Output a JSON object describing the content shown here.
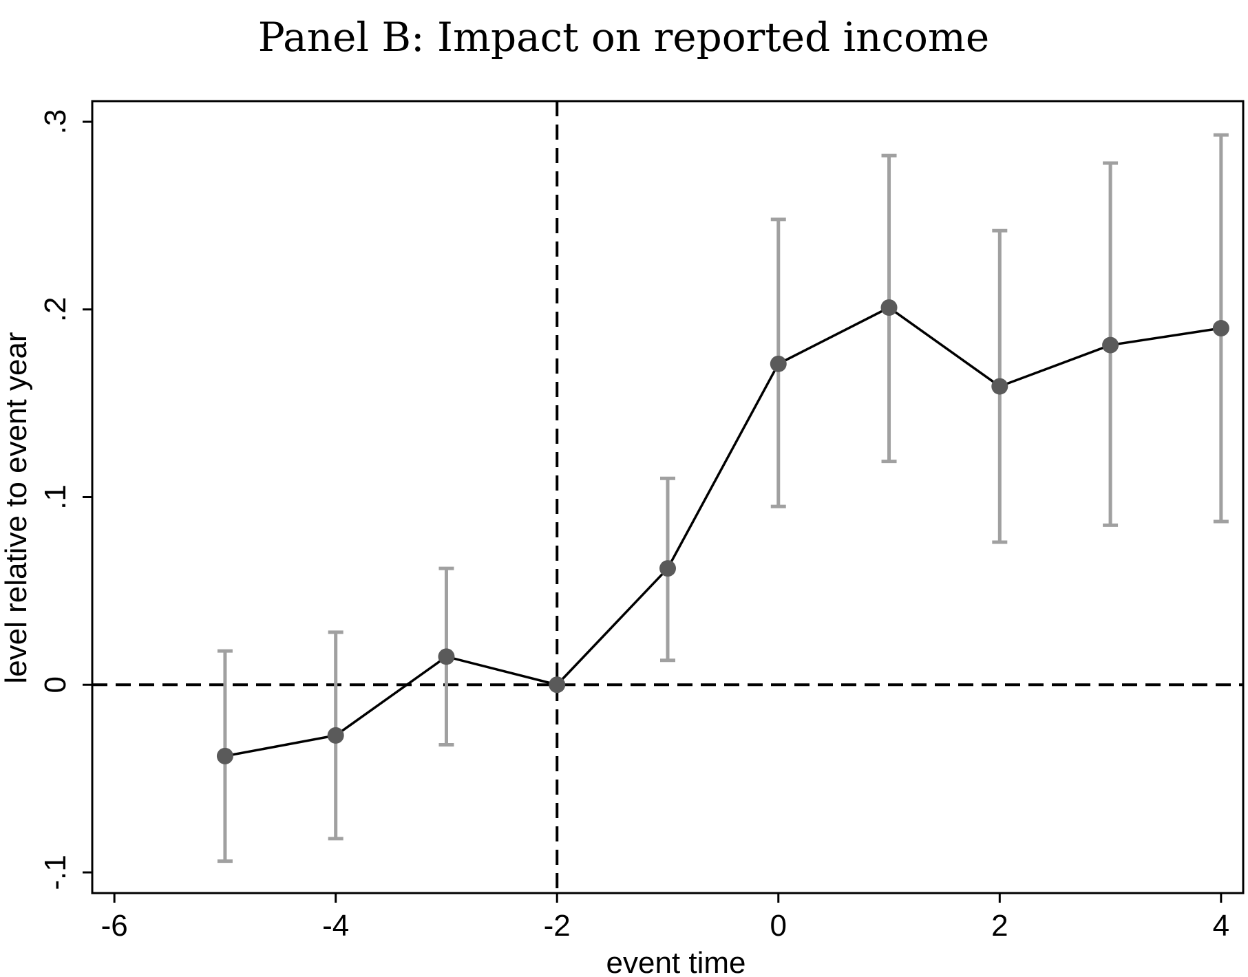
{
  "chart_data": {
    "type": "line",
    "title": "Panel B: Impact on reported income",
    "xlabel": "event time",
    "ylabel": "level relative to event year",
    "xlim": [
      -6.2,
      4.2
    ],
    "ylim": [
      -0.111,
      0.311
    ],
    "x_ticks": [
      -6,
      -4,
      -2,
      0,
      2,
      4
    ],
    "x_tick_labels": [
      "-6",
      "-4",
      "-2",
      "0",
      "2",
      "4"
    ],
    "y_ticks": [
      -0.1,
      0,
      0.1,
      0.2,
      0.3
    ],
    "y_tick_labels": [
      "-.1",
      "0",
      ".1",
      ".2",
      ".3"
    ],
    "grid": false,
    "legend": "none",
    "reference_lines": [
      {
        "orientation": "vertical",
        "value": -2,
        "style": "dashed"
      },
      {
        "orientation": "horizontal",
        "value": 0,
        "style": "dashed"
      }
    ],
    "series": [
      {
        "x": [
          -5,
          -4,
          -3,
          -2,
          -1,
          0,
          1,
          2,
          3,
          4
        ],
        "values": [
          -0.038,
          -0.027,
          0.015,
          0.0,
          0.062,
          0.171,
          0.201,
          0.159,
          0.181,
          0.19
        ],
        "ci_lower": [
          -0.094,
          -0.082,
          -0.032,
          null,
          0.013,
          0.095,
          0.119,
          0.076,
          0.085,
          0.087
        ],
        "ci_upper": [
          0.018,
          0.028,
          0.062,
          null,
          0.11,
          0.248,
          0.282,
          0.242,
          0.278,
          0.293
        ]
      }
    ],
    "colors": {
      "line": "#000000",
      "marker": "#5a5a5a",
      "error_bar": "#a0a0a0",
      "reference_line": "#000000"
    }
  }
}
